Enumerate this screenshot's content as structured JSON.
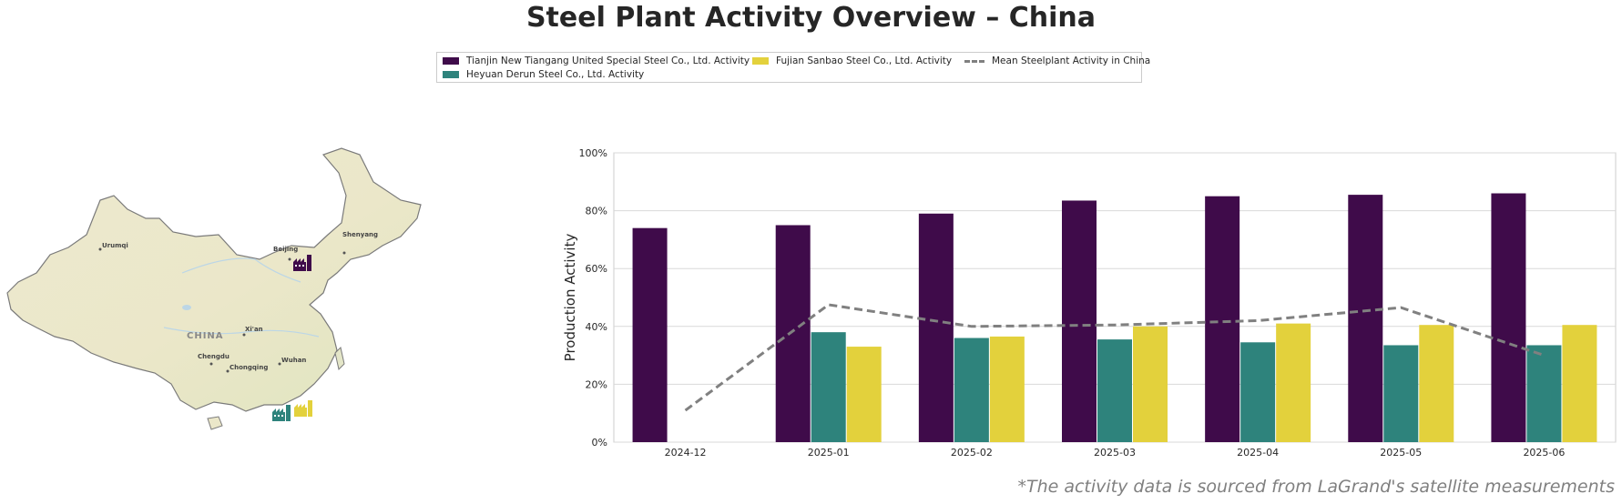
{
  "title": "Steel Plant Activity Overview – China",
  "footnote": "*The activity data is sourced from LaGrand's satellite measurements",
  "legend": {
    "tianjin": "Tianjin New Tiangang United Special Steel Co., Ltd. Activity",
    "heyuan": "Heyuan Derun Steel Co., Ltd. Activity",
    "fujian": "Fujian Sanbao Steel Co., Ltd. Activity",
    "mean": "Mean Steelplant Activity in China"
  },
  "colors": {
    "tianjin": "#3f0b4a",
    "heyuan": "#2e837c",
    "fujian": "#e3d13c",
    "mean": "#808080",
    "grid": "#d9d9d9"
  },
  "map": {
    "country_label": "CHINA",
    "cities": [
      "Urumqi",
      "Beijing",
      "Shenyang",
      "Xi'an",
      "Chengdu",
      "Chongqing",
      "Wuhan"
    ],
    "icons": [
      "factory-icon-tianjin",
      "factory-icon-heyuan",
      "factory-icon-fujian"
    ]
  },
  "chart_data": {
    "type": "bar",
    "categories": [
      "2024-12",
      "2025-01",
      "2025-02",
      "2025-03",
      "2025-04",
      "2025-05",
      "2025-06"
    ],
    "series": [
      {
        "name": "Tianjin New Tiangang United Special Steel Co., Ltd. Activity",
        "type": "bar",
        "values": [
          74,
          75,
          79,
          83.5,
          85,
          85.5,
          86
        ]
      },
      {
        "name": "Heyuan Derun Steel Co., Ltd. Activity",
        "type": "bar",
        "values": [
          null,
          38,
          36,
          35.5,
          34.5,
          33.5,
          33.5
        ]
      },
      {
        "name": "Fujian Sanbao Steel Co., Ltd. Activity",
        "type": "bar",
        "values": [
          null,
          33,
          36.5,
          40,
          41,
          40.5,
          40.5
        ]
      },
      {
        "name": "Mean Steelplant Activity in China",
        "type": "line",
        "values": [
          11,
          47.5,
          40,
          40.5,
          42,
          46.5,
          30
        ]
      }
    ],
    "ylabel": "Production Activity",
    "xlabel": "",
    "ylim": [
      0,
      100
    ],
    "yticks": [
      "0%",
      "20%",
      "40%",
      "60%",
      "80%",
      "100%"
    ],
    "grid": true,
    "legend_position": "top-center"
  }
}
